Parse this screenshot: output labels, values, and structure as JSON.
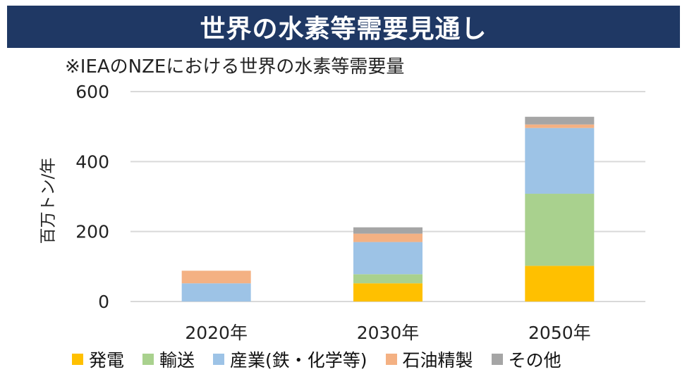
{
  "header": {
    "title": "世界の水素等需要見通し"
  },
  "subtitle": "※IEAのNZEにおける世界の水素等需要量",
  "chart_data": {
    "type": "bar",
    "stacked": true,
    "title": "",
    "xlabel": "",
    "ylabel": "百万トン/年",
    "ylim": [
      0,
      600
    ],
    "yticks": [
      0,
      200,
      400,
      600
    ],
    "grid": true,
    "legend_position": "bottom",
    "categories": [
      "2020年",
      "2030年",
      "2050年"
    ],
    "series": [
      {
        "name": "発電",
        "color": "#ffc000",
        "values": [
          0,
          52,
          102
        ]
      },
      {
        "name": "輸送",
        "color": "#a9d18e",
        "values": [
          0,
          26,
          206
        ]
      },
      {
        "name": "産業(鉄・化学等)",
        "color": "#9dc3e6",
        "values": [
          52,
          92,
          188
        ]
      },
      {
        "name": "石油精製",
        "color": "#f4b183",
        "values": [
          36,
          24,
          10
        ]
      },
      {
        "name": "その他",
        "color": "#a5a5a5",
        "values": [
          0,
          18,
          22
        ]
      }
    ]
  }
}
